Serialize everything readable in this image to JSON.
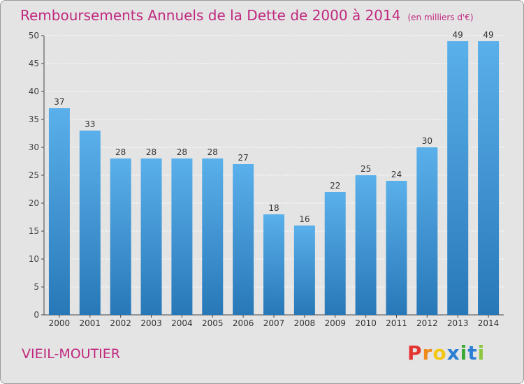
{
  "header": {
    "title": "Remboursements Annuels de la Dette de 2000 à 2014",
    "unit": "(en milliers d'€)"
  },
  "footer": {
    "place": "VIEIL-MOUTIER",
    "logo_letters": [
      "P",
      "r",
      "o",
      "x",
      "i",
      "t",
      "i"
    ]
  },
  "colors": {
    "bar_top": "#5ab0ea",
    "bar_bottom": "#2878b8",
    "title": "#c0287f",
    "grid": "#ffffff",
    "axis": "#444444"
  },
  "chart_data": {
    "type": "bar",
    "title": "Remboursements Annuels de la Dette de 2000 à 2014",
    "xlabel": "",
    "ylabel": "",
    "ylim": [
      0,
      50
    ],
    "yticks": [
      0,
      5,
      10,
      15,
      20,
      25,
      30,
      35,
      40,
      45,
      50
    ],
    "grid": true,
    "categories": [
      "2000",
      "2001",
      "2002",
      "2003",
      "2004",
      "2005",
      "2006",
      "2007",
      "2008",
      "2009",
      "2010",
      "2011",
      "2012",
      "2013",
      "2014"
    ],
    "values": [
      37,
      33,
      28,
      28,
      28,
      28,
      27,
      18,
      16,
      22,
      25,
      24,
      30,
      49,
      49
    ]
  }
}
